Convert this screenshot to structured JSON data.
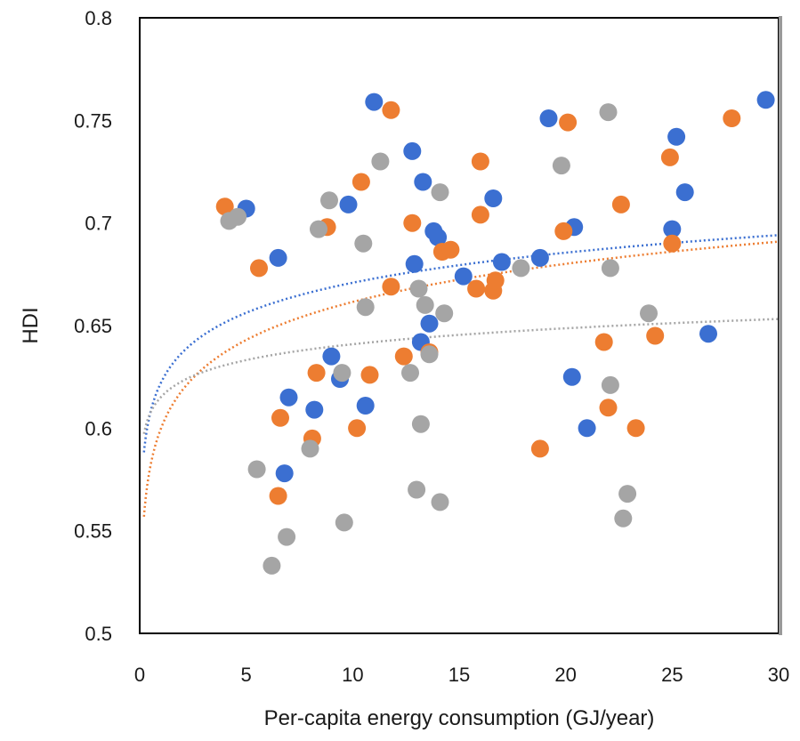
{
  "chart_data": {
    "type": "scatter",
    "title": "",
    "xlabel": "Per-capita energy consumption (GJ/year)",
    "ylabel": "HDI",
    "xlim": [
      0,
      30
    ],
    "ylim": [
      0.5,
      0.8
    ],
    "x_ticks": [
      0,
      5,
      10,
      15,
      20,
      25,
      30
    ],
    "y_ticks": [
      0.5,
      0.55,
      0.6,
      0.65,
      0.7,
      0.75,
      0.8
    ],
    "x_tick_labels": [
      "0",
      "5",
      "10",
      "15",
      "20",
      "25",
      "30"
    ],
    "y_tick_labels": [
      "0.5",
      "0.55",
      "0.6",
      "0.65",
      "0.7",
      "0.75",
      "0.8"
    ],
    "grid": false,
    "legend": "none",
    "series": [
      {
        "color": "#3b6fd1",
        "trendline": "logarithmic",
        "trend_samples": [
          [
            0.25,
            0.59
          ],
          [
            1,
            0.625
          ],
          [
            3,
            0.648
          ],
          [
            5,
            0.657
          ],
          [
            10,
            0.67
          ],
          [
            15,
            0.678
          ],
          [
            20,
            0.684
          ],
          [
            25,
            0.69
          ],
          [
            30,
            0.695
          ]
        ],
        "points": [
          [
            5.0,
            0.707
          ],
          [
            6.5,
            0.683
          ],
          [
            11.0,
            0.759
          ],
          [
            12.8,
            0.735
          ],
          [
            13.3,
            0.72
          ],
          [
            9.8,
            0.709
          ],
          [
            13.8,
            0.696
          ],
          [
            14.0,
            0.693
          ],
          [
            12.9,
            0.68
          ],
          [
            15.2,
            0.674
          ],
          [
            16.6,
            0.712
          ],
          [
            17.0,
            0.681
          ],
          [
            18.8,
            0.683
          ],
          [
            19.2,
            0.751
          ],
          [
            20.4,
            0.698
          ],
          [
            25.2,
            0.742
          ],
          [
            25.6,
            0.715
          ],
          [
            25.0,
            0.697
          ],
          [
            29.4,
            0.76
          ],
          [
            13.2,
            0.642
          ],
          [
            13.6,
            0.651
          ],
          [
            9.0,
            0.635
          ],
          [
            9.4,
            0.624
          ],
          [
            7.0,
            0.615
          ],
          [
            8.2,
            0.609
          ],
          [
            10.6,
            0.611
          ],
          [
            20.3,
            0.625
          ],
          [
            21.0,
            0.6
          ],
          [
            26.7,
            0.646
          ],
          [
            6.8,
            0.578
          ]
        ]
      },
      {
        "color": "#ed7d31",
        "trendline": "logarithmic",
        "trend_samples": [
          [
            0.25,
            0.555
          ],
          [
            1,
            0.605
          ],
          [
            3,
            0.635
          ],
          [
            5,
            0.647
          ],
          [
            10,
            0.663
          ],
          [
            15,
            0.672
          ],
          [
            20,
            0.678
          ],
          [
            25,
            0.683
          ],
          [
            30,
            0.688
          ]
        ],
        "points": [
          [
            4.0,
            0.708
          ],
          [
            5.6,
            0.678
          ],
          [
            8.8,
            0.698
          ],
          [
            10.4,
            0.72
          ],
          [
            11.8,
            0.755
          ],
          [
            12.8,
            0.7
          ],
          [
            16.0,
            0.73
          ],
          [
            16.0,
            0.704
          ],
          [
            14.2,
            0.686
          ],
          [
            14.6,
            0.687
          ],
          [
            11.8,
            0.669
          ],
          [
            15.8,
            0.668
          ],
          [
            16.6,
            0.667
          ],
          [
            16.7,
            0.672
          ],
          [
            20.1,
            0.749
          ],
          [
            19.9,
            0.696
          ],
          [
            22.6,
            0.709
          ],
          [
            24.9,
            0.732
          ],
          [
            25.0,
            0.69
          ],
          [
            27.8,
            0.751
          ],
          [
            8.3,
            0.627
          ],
          [
            10.8,
            0.626
          ],
          [
            12.4,
            0.635
          ],
          [
            13.6,
            0.637
          ],
          [
            21.8,
            0.642
          ],
          [
            24.2,
            0.645
          ],
          [
            6.6,
            0.605
          ],
          [
            8.1,
            0.595
          ],
          [
            10.2,
            0.6
          ],
          [
            22.0,
            0.61
          ],
          [
            23.3,
            0.6
          ],
          [
            18.8,
            0.59
          ],
          [
            6.5,
            0.567
          ]
        ]
      },
      {
        "color": "#a5a5a5",
        "trendline": "logarithmic",
        "trend_samples": [
          [
            0.25,
            0.596
          ],
          [
            1,
            0.618
          ],
          [
            3,
            0.63
          ],
          [
            5,
            0.635
          ],
          [
            10,
            0.641
          ],
          [
            15,
            0.645
          ],
          [
            20,
            0.648
          ],
          [
            25,
            0.65
          ],
          [
            30,
            0.652
          ]
        ],
        "points": [
          [
            4.2,
            0.701
          ],
          [
            4.6,
            0.703
          ],
          [
            8.9,
            0.711
          ],
          [
            8.4,
            0.697
          ],
          [
            10.5,
            0.69
          ],
          [
            11.3,
            0.73
          ],
          [
            14.1,
            0.715
          ],
          [
            13.1,
            0.668
          ],
          [
            13.4,
            0.66
          ],
          [
            14.3,
            0.656
          ],
          [
            10.6,
            0.659
          ],
          [
            17.9,
            0.678
          ],
          [
            19.8,
            0.728
          ],
          [
            22.0,
            0.754
          ],
          [
            22.1,
            0.678
          ],
          [
            23.9,
            0.656
          ],
          [
            9.5,
            0.627
          ],
          [
            12.7,
            0.627
          ],
          [
            13.6,
            0.636
          ],
          [
            22.1,
            0.621
          ],
          [
            13.2,
            0.602
          ],
          [
            8.0,
            0.59
          ],
          [
            5.5,
            0.58
          ],
          [
            6.9,
            0.547
          ],
          [
            6.2,
            0.533
          ],
          [
            9.6,
            0.554
          ],
          [
            13.0,
            0.57
          ],
          [
            14.1,
            0.564
          ],
          [
            22.9,
            0.568
          ],
          [
            22.7,
            0.556
          ]
        ]
      }
    ]
  }
}
